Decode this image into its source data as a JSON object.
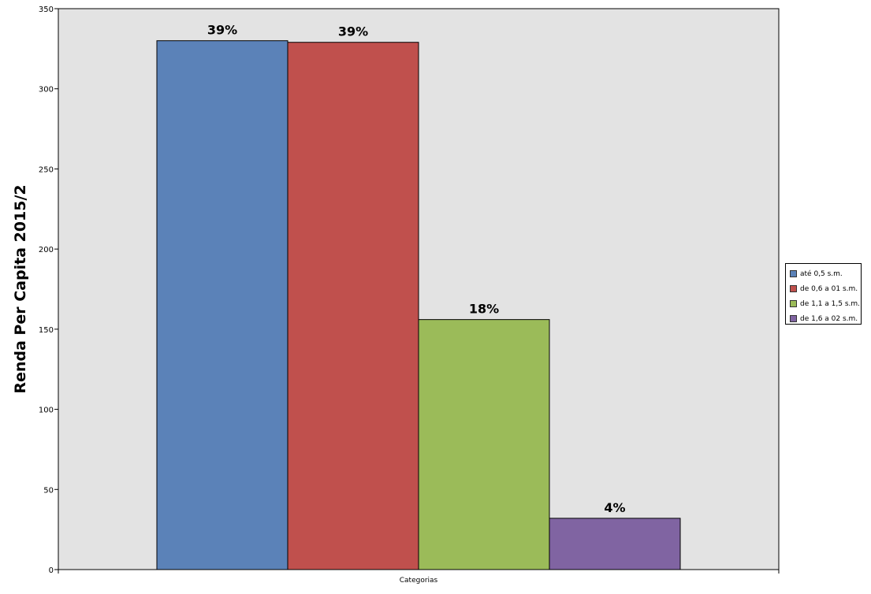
{
  "chart_data": {
    "type": "bar",
    "xlabel": "Categorias",
    "ylabel": "Renda Per Capita 2015/2",
    "ylim": [
      0,
      350
    ],
    "yticks": [
      0,
      50,
      100,
      150,
      200,
      250,
      300,
      350
    ],
    "grid": false,
    "legend_position": "right",
    "plot_background": "#e3e3e3",
    "series": [
      {
        "name": "até 0,5 s.m.",
        "value": 330,
        "label": "39%",
        "color": "#5b82b8"
      },
      {
        "name": "de 0,6 a 01 s.m.",
        "value": 329,
        "label": "39%",
        "color": "#c0504d"
      },
      {
        "name": "de 1,1 a 1,5 s.m.",
        "value": 156,
        "label": "18%",
        "color": "#9bbb59"
      },
      {
        "name": "de 1,6 a 02 s.m.",
        "value": 32,
        "label": "4%",
        "color": "#8064a2"
      }
    ]
  }
}
